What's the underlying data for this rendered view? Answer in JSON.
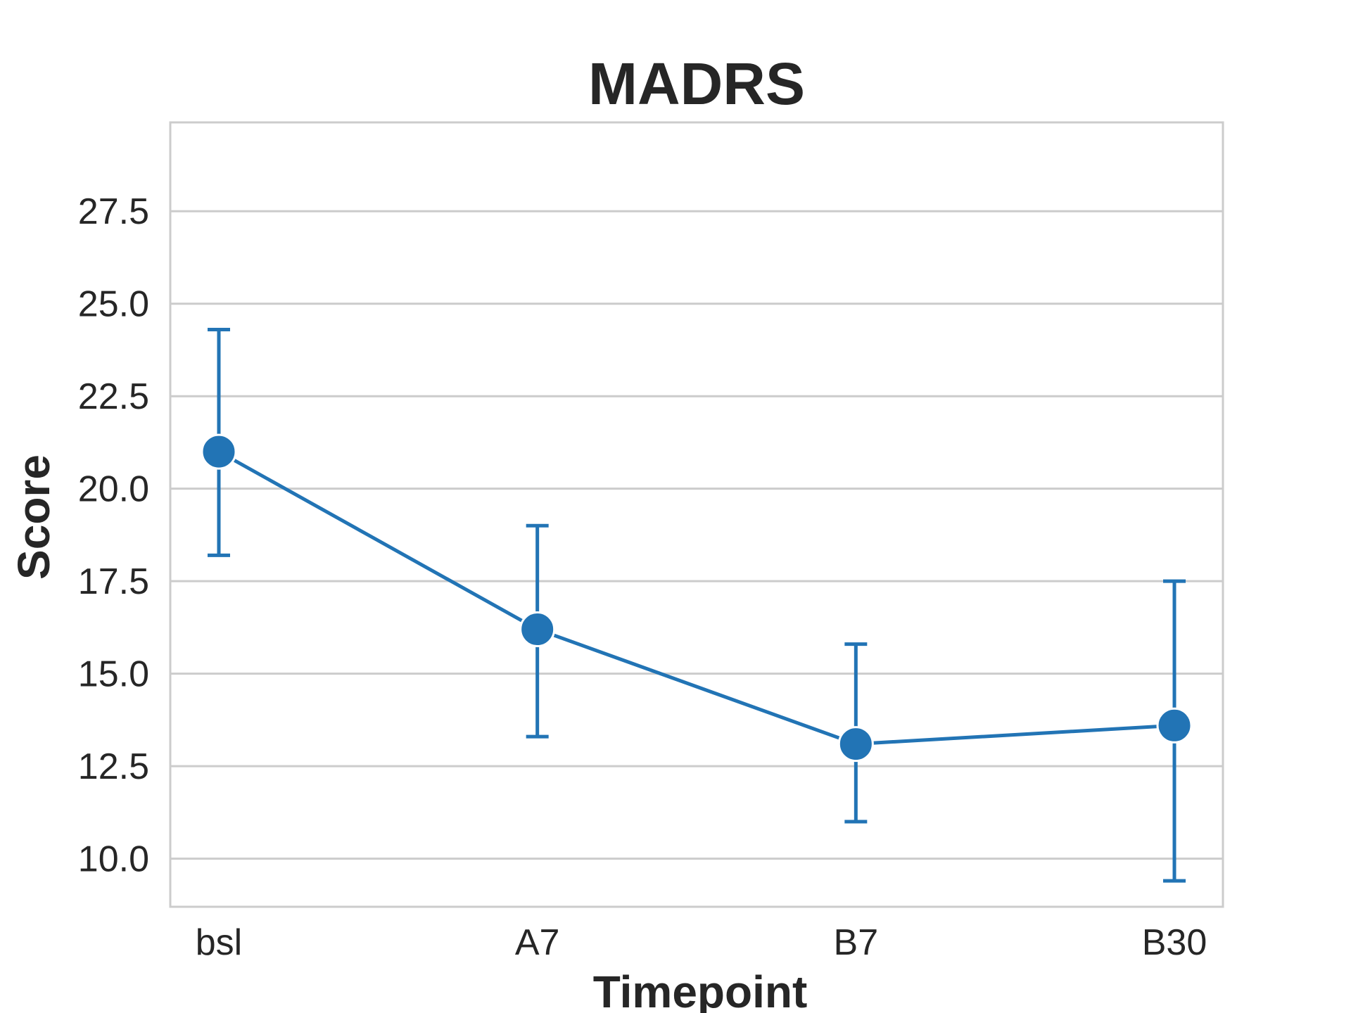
{
  "chart_data": {
    "type": "line",
    "title": "MADRS",
    "xlabel": "Timepoint",
    "ylabel": "Score",
    "categories": [
      "bsl",
      "A7",
      "B7",
      "B30"
    ],
    "series": [
      {
        "values": [
          21.0,
          16.2,
          13.1,
          13.6
        ],
        "error_low": [
          18.2,
          13.3,
          11.0,
          9.4
        ],
        "error_high": [
          24.3,
          19.0,
          15.8,
          17.5
        ]
      }
    ],
    "ylim": [
      8.7,
      29.9
    ],
    "yticks": [
      "10.0",
      "12.5",
      "15.0",
      "17.5",
      "20.0",
      "22.5",
      "25.0",
      "27.5"
    ],
    "grid": "horizontal",
    "colors": {
      "series": "#2274b5",
      "grid": "#cccccc",
      "frame": "#cccccc",
      "text": "#262626"
    }
  }
}
